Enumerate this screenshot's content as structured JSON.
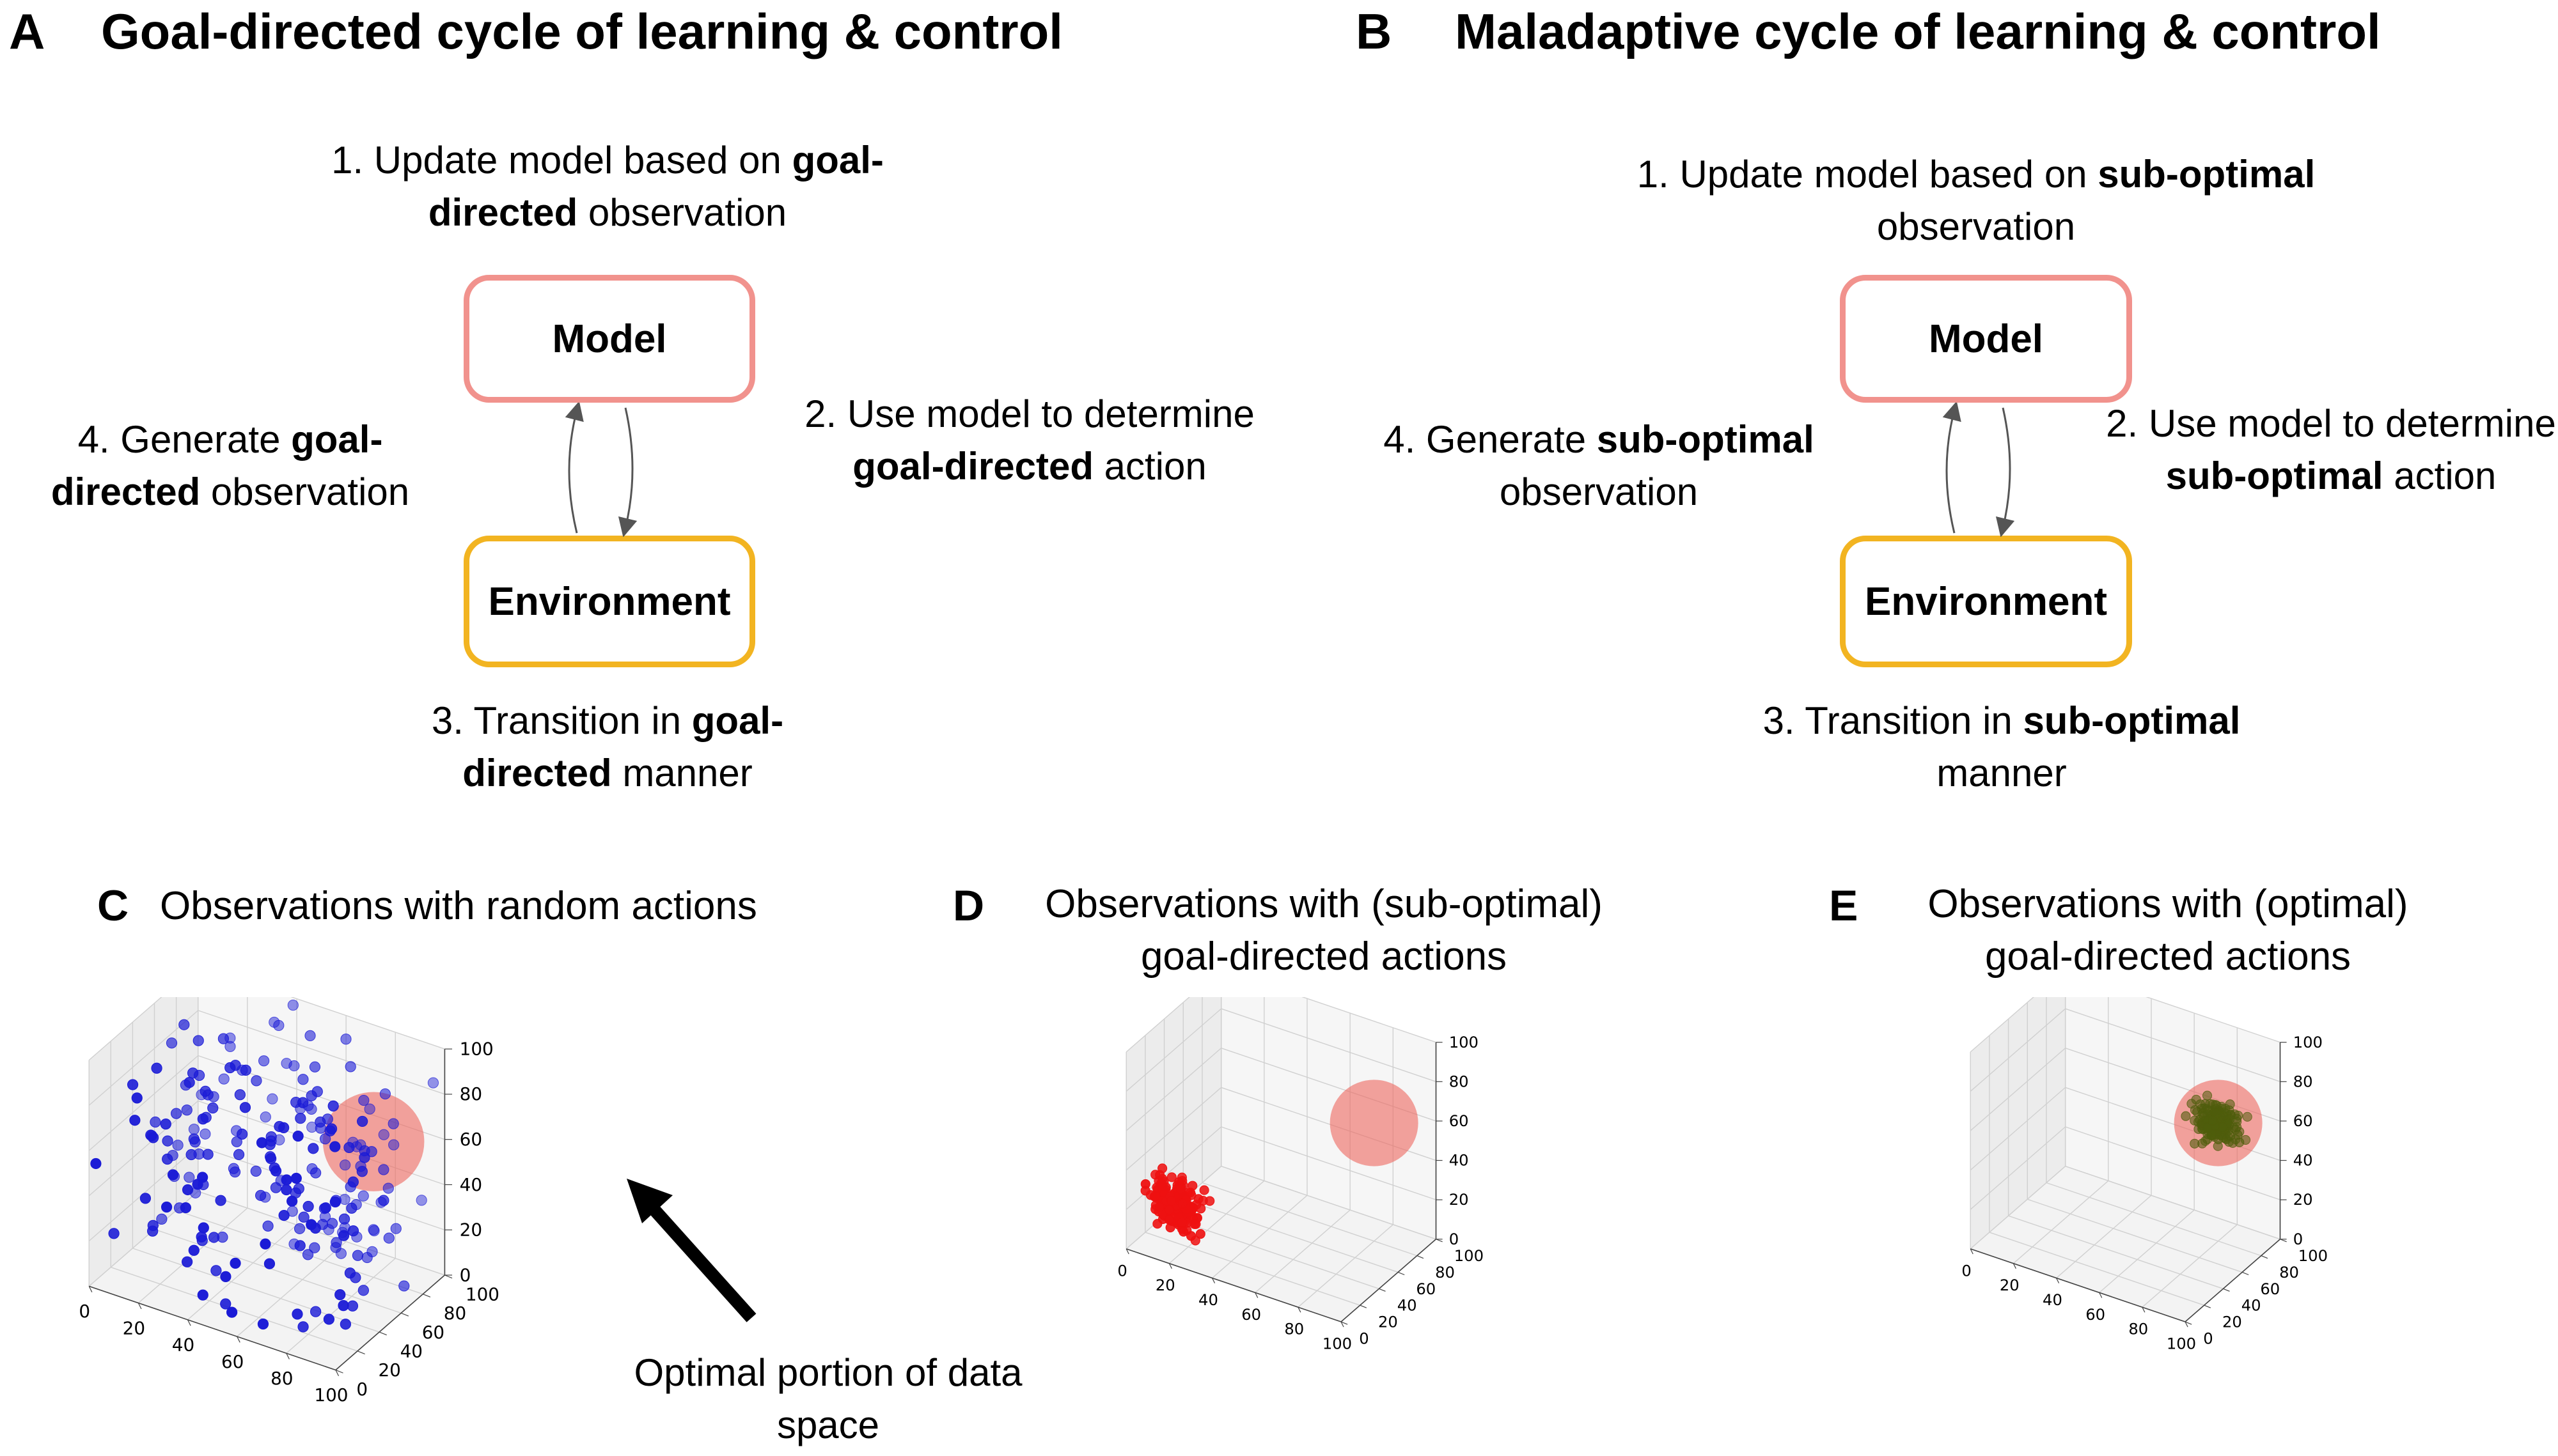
{
  "panel_a": {
    "letter": "A",
    "title": "Goal-directed cycle of learning & control",
    "model_label": "Model",
    "environment_label": "Environment",
    "step1": {
      "pre": "1. Update model based on ",
      "bold": "goal-directed",
      "post": " observation"
    },
    "step2": {
      "pre": "2. Use model to determine ",
      "bold": "goal-directed",
      "post": " action"
    },
    "step3": {
      "pre": "3. Transition in ",
      "bold": "goal-directed",
      "post": " manner"
    },
    "step4": {
      "pre": "4. Generate ",
      "bold": "goal-directed",
      "post": " observation"
    }
  },
  "panel_b": {
    "letter": "B",
    "title": "Maladaptive cycle of learning & control",
    "model_label": "Model",
    "environment_label": "Environment",
    "step1": {
      "pre": "1. Update model based on ",
      "bold": "sub-optimal",
      "post": " observation"
    },
    "step2": {
      "pre": "2. Use model to determine ",
      "bold": "sub-optimal",
      "post": " action"
    },
    "step3": {
      "pre": "3. Transition in ",
      "bold": "sub-optimal",
      "post": " manner"
    },
    "step4": {
      "pre": "4. Generate ",
      "bold": "sub-optimal",
      "post": " observation"
    }
  },
  "panel_c": {
    "letter": "C",
    "title": "Observations with random actions",
    "annotation": "Optimal portion of data space",
    "point_color": "#1a1ad6"
  },
  "panel_d": {
    "letter": "D",
    "title": "Observations with (sub-optimal) goal-directed actions",
    "point_color": "#ee1111"
  },
  "panel_e": {
    "letter": "E",
    "title": "Observations with (optimal) goal-directed actions",
    "point_color": "#4f5d0c"
  },
  "colors": {
    "model_border": "#f1928d",
    "environment_border": "#f2b421",
    "optimal_region": "#ee6a63"
  },
  "chart_data": [
    {
      "type": "scatter",
      "panel": "C",
      "dimensions": 3,
      "title": "Observations with random actions",
      "x_ticks": [
        "0",
        "20",
        "40",
        "60",
        "80",
        "100"
      ],
      "y_ticks": [
        "0",
        "20",
        "40",
        "60",
        "80",
        "100"
      ],
      "z_ticks": [
        "0",
        "20",
        "40",
        "60",
        "80",
        "100"
      ],
      "xlim": [
        0,
        100
      ],
      "ylim": [
        0,
        100
      ],
      "zlim": [
        0,
        100
      ],
      "distribution": "uniform random",
      "n_points": 220,
      "optimal_region": {
        "center": [
          80,
          80,
          60
        ],
        "radius": 20
      }
    },
    {
      "type": "scatter",
      "panel": "D",
      "dimensions": 3,
      "title": "Observations with (sub-optimal) goal-directed actions",
      "x_ticks": [
        "0",
        "20",
        "40",
        "60",
        "80",
        "100"
      ],
      "y_ticks": [
        "0",
        "20",
        "40",
        "60",
        "80",
        "100"
      ],
      "z_ticks": [
        "0",
        "20",
        "40",
        "60",
        "80",
        "100"
      ],
      "xlim": [
        0,
        100
      ],
      "ylim": [
        0,
        100
      ],
      "zlim": [
        0,
        100
      ],
      "cluster_center": [
        15,
        20,
        20
      ],
      "cluster_spread": 6,
      "n_points": 170,
      "optimal_region": {
        "center": [
          80,
          80,
          60
        ],
        "radius": 20
      }
    },
    {
      "type": "scatter",
      "panel": "E",
      "dimensions": 3,
      "title": "Observations with (optimal) goal-directed actions",
      "x_ticks": [
        "0",
        "20",
        "40",
        "60",
        "80",
        "100"
      ],
      "y_ticks": [
        "0",
        "20",
        "40",
        "60",
        "80",
        "100"
      ],
      "z_ticks": [
        "0",
        "20",
        "40",
        "60",
        "80",
        "100"
      ],
      "xlim": [
        0,
        100
      ],
      "ylim": [
        0,
        100
      ],
      "zlim": [
        0,
        100
      ],
      "cluster_center": [
        80,
        80,
        60
      ],
      "cluster_spread": 5,
      "n_points": 170,
      "optimal_region": {
        "center": [
          80,
          80,
          60
        ],
        "radius": 20
      }
    }
  ]
}
